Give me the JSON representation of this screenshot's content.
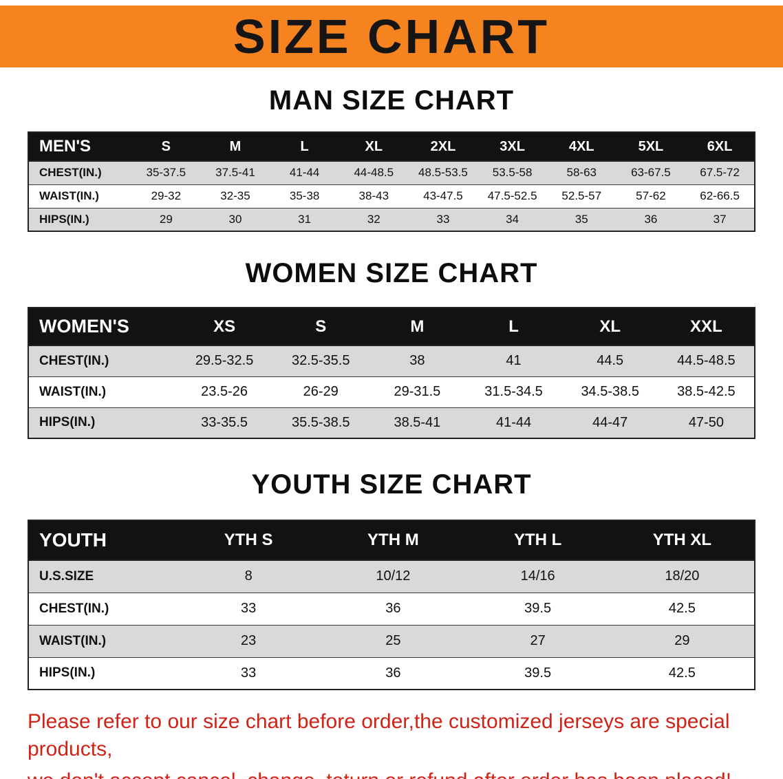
{
  "banner": {
    "title": "SIZE CHART",
    "bg_color": "#f5831f",
    "text_color": "#151515"
  },
  "tables": [
    {
      "id": "men",
      "heading": "MAN SIZE CHART",
      "header": [
        "MEN'S",
        "S",
        "M",
        "L",
        "XL",
        "2XL",
        "3XL",
        "4XL",
        "5XL",
        "6XL"
      ],
      "rows": [
        [
          "CHEST(IN.)",
          "35-37.5",
          "37.5-41",
          "41-44",
          "44-48.5",
          "48.5-53.5",
          "53.5-58",
          "58-63",
          "63-67.5",
          "67.5-72"
        ],
        [
          "WAIST(IN.)",
          "29-32",
          "32-35",
          "35-38",
          "38-43",
          "43-47.5",
          "47.5-52.5",
          "52.5-57",
          "57-62",
          "62-66.5"
        ],
        [
          "HIPS(IN.)",
          "29",
          "30",
          "31",
          "32",
          "33",
          "34",
          "35",
          "36",
          "37"
        ]
      ]
    },
    {
      "id": "women",
      "heading": "WOMEN SIZE CHART",
      "header": [
        "WOMEN'S",
        "XS",
        "S",
        "M",
        "L",
        "XL",
        "XXL"
      ],
      "rows": [
        [
          "CHEST(IN.)",
          "29.5-32.5",
          "32.5-35.5",
          "38",
          "41",
          "44.5",
          "44.5-48.5"
        ],
        [
          "WAIST(IN.)",
          "23.5-26",
          "26-29",
          "29-31.5",
          "31.5-34.5",
          "34.5-38.5",
          "38.5-42.5"
        ],
        [
          "HIPS(IN.)",
          "33-35.5",
          "35.5-38.5",
          "38.5-41",
          "41-44",
          "44-47",
          "47-50"
        ]
      ]
    },
    {
      "id": "youth",
      "heading": "YOUTH SIZE CHART",
      "header": [
        "YOUTH",
        "YTH S",
        "YTH M",
        "YTH L",
        "YTH XL"
      ],
      "rows": [
        [
          "U.S.SIZE",
          "8",
          "10/12",
          "14/16",
          "18/20"
        ],
        [
          "CHEST(IN.)",
          "33",
          "36",
          "39.5",
          "42.5"
        ],
        [
          "WAIST(IN.)",
          "23",
          "25",
          "27",
          "29"
        ],
        [
          "HIPS(IN.)",
          "33",
          "36",
          "39.5",
          "42.5"
        ]
      ]
    }
  ],
  "footer_note": {
    "color": "#cf2318",
    "lines": [
      "Please refer to our size chart before order,the customized jerseys are special products,",
      "we don't accept cancel, change, teturn or refund after order has been placed!"
    ]
  }
}
